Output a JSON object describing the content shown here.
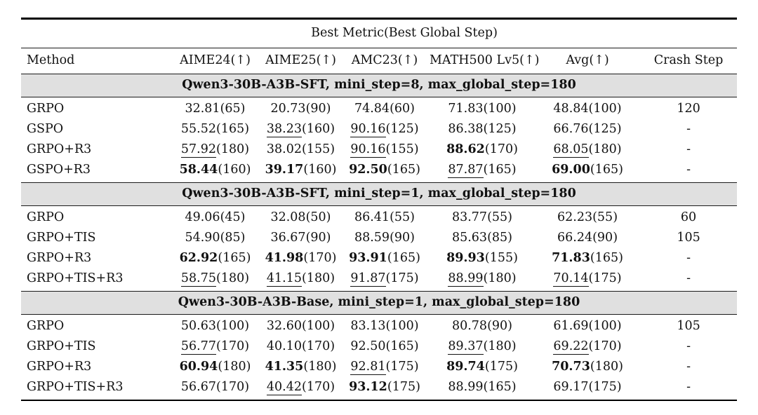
{
  "table": {
    "title": "Best Metric(Best Global Step)",
    "columns": [
      "Method",
      "AIME24(↑)",
      "AIME25(↑)",
      "AMC23(↑)",
      "MATH500 Lv5(↑)",
      "Avg(↑)",
      "Crash Step"
    ],
    "sections": [
      {
        "header": "Qwen3-30B-A3B-SFT, mini_step=8, max_global_step=180",
        "rows": [
          {
            "method": "GRPO",
            "cells": [
              {
                "value": "32.81",
                "step": "(65)",
                "style": "plain"
              },
              {
                "value": "20.73",
                "step": "(90)",
                "style": "plain"
              },
              {
                "value": "74.84",
                "step": "(60)",
                "style": "plain"
              },
              {
                "value": "71.83",
                "step": "(100)",
                "style": "plain"
              },
              {
                "value": "48.84",
                "step": "(100)",
                "style": "plain"
              }
            ],
            "crash_step": "120"
          },
          {
            "method": "GSPO",
            "cells": [
              {
                "value": "55.52",
                "step": "(165)",
                "style": "plain"
              },
              {
                "value": "38.23",
                "step": "(160)",
                "style": "underline"
              },
              {
                "value": "90.16",
                "step": "(125)",
                "style": "underline"
              },
              {
                "value": "86.38",
                "step": "(125)",
                "style": "plain"
              },
              {
                "value": "66.76",
                "step": "(125)",
                "style": "plain"
              }
            ],
            "crash_step": "-"
          },
          {
            "method": "GRPO+R3",
            "cells": [
              {
                "value": "57.92",
                "step": "(180)",
                "style": "underline"
              },
              {
                "value": "38.02",
                "step": "(155)",
                "style": "plain"
              },
              {
                "value": "90.16",
                "step": "(155)",
                "style": "underline"
              },
              {
                "value": "88.62",
                "step": "(170)",
                "style": "bold"
              },
              {
                "value": "68.05",
                "step": "(180)",
                "style": "underline"
              }
            ],
            "crash_step": "-"
          },
          {
            "method": "GSPO+R3",
            "cells": [
              {
                "value": "58.44",
                "step": "(160)",
                "style": "bold"
              },
              {
                "value": "39.17",
                "step": "(160)",
                "style": "bold"
              },
              {
                "value": "92.50",
                "step": "(165)",
                "style": "bold"
              },
              {
                "value": "87.87",
                "step": "(165)",
                "style": "underline"
              },
              {
                "value": "69.00",
                "step": "(165)",
                "style": "bold"
              }
            ],
            "crash_step": "-"
          }
        ]
      },
      {
        "header": "Qwen3-30B-A3B-SFT, mini_step=1, max_global_step=180",
        "rows": [
          {
            "method": "GRPO",
            "cells": [
              {
                "value": "49.06",
                "step": "(45)",
                "style": "plain"
              },
              {
                "value": "32.08",
                "step": "(50)",
                "style": "plain"
              },
              {
                "value": "86.41",
                "step": "(55)",
                "style": "plain"
              },
              {
                "value": "83.77",
                "step": "(55)",
                "style": "plain"
              },
              {
                "value": "62.23",
                "step": "(55)",
                "style": "plain"
              }
            ],
            "crash_step": "60"
          },
          {
            "method": "GRPO+TIS",
            "cells": [
              {
                "value": "54.90",
                "step": "(85)",
                "style": "plain"
              },
              {
                "value": "36.67",
                "step": "(90)",
                "style": "plain"
              },
              {
                "value": "88.59",
                "step": "(90)",
                "style": "plain"
              },
              {
                "value": "85.63",
                "step": "(85)",
                "style": "plain"
              },
              {
                "value": "66.24",
                "step": "(90)",
                "style": "plain"
              }
            ],
            "crash_step": "105"
          },
          {
            "method": "GRPO+R3",
            "cells": [
              {
                "value": "62.92",
                "step": "(165)",
                "style": "bold"
              },
              {
                "value": "41.98",
                "step": "(170)",
                "style": "bold"
              },
              {
                "value": "93.91",
                "step": "(165)",
                "style": "bold"
              },
              {
                "value": "89.93",
                "step": "(155)",
                "style": "bold"
              },
              {
                "value": "71.83",
                "step": "(165)",
                "style": "bold"
              }
            ],
            "crash_step": "-"
          },
          {
            "method": "GRPO+TIS+R3",
            "cells": [
              {
                "value": "58.75",
                "step": "(180)",
                "style": "underline"
              },
              {
                "value": "41.15",
                "step": "(180)",
                "style": "underline"
              },
              {
                "value": "91.87",
                "step": "(175)",
                "style": "underline"
              },
              {
                "value": "88.99",
                "step": "(180)",
                "style": "underline"
              },
              {
                "value": "70.14",
                "step": "(175)",
                "style": "underline"
              }
            ],
            "crash_step": "-"
          }
        ]
      },
      {
        "header": "Qwen3-30B-A3B-Base, mini_step=1, max_global_step=180",
        "rows": [
          {
            "method": "GRPO",
            "cells": [
              {
                "value": "50.63",
                "step": "(100)",
                "style": "plain"
              },
              {
                "value": "32.60",
                "step": "(100)",
                "style": "plain"
              },
              {
                "value": "83.13",
                "step": "(100)",
                "style": "plain"
              },
              {
                "value": "80.78",
                "step": "(90)",
                "style": "plain"
              },
              {
                "value": "61.69",
                "step": "(100)",
                "style": "plain"
              }
            ],
            "crash_step": "105"
          },
          {
            "method": "GRPO+TIS",
            "cells": [
              {
                "value": "56.77",
                "step": "(170)",
                "style": "underline"
              },
              {
                "value": "40.10",
                "step": "(170)",
                "style": "plain"
              },
              {
                "value": "92.50",
                "step": "(165)",
                "style": "plain"
              },
              {
                "value": "89.37",
                "step": "(180)",
                "style": "underline"
              },
              {
                "value": "69.22",
                "step": "(170)",
                "style": "underline"
              }
            ],
            "crash_step": "-"
          },
          {
            "method": "GRPO+R3",
            "cells": [
              {
                "value": "60.94",
                "step": "(180)",
                "style": "bold"
              },
              {
                "value": "41.35",
                "step": "(180)",
                "style": "bold"
              },
              {
                "value": "92.81",
                "step": "(175)",
                "style": "underline"
              },
              {
                "value": "89.74",
                "step": "(175)",
                "style": "bold"
              },
              {
                "value": "70.73",
                "step": "(180)",
                "style": "bold"
              }
            ],
            "crash_step": "-"
          },
          {
            "method": "GRPO+TIS+R3",
            "cells": [
              {
                "value": "56.67",
                "step": "(170)",
                "style": "plain"
              },
              {
                "value": "40.42",
                "step": "(170)",
                "style": "underline"
              },
              {
                "value": "93.12",
                "step": "(175)",
                "style": "bold"
              },
              {
                "value": "88.99",
                "step": "(165)",
                "style": "plain"
              },
              {
                "value": "69.17",
                "step": "(175)",
                "style": "plain"
              }
            ],
            "crash_step": "-"
          }
        ]
      }
    ],
    "colors": {
      "section_band": "#e0e0e0",
      "rule": "#000000",
      "text": "#111111",
      "background": "#ffffff"
    }
  }
}
